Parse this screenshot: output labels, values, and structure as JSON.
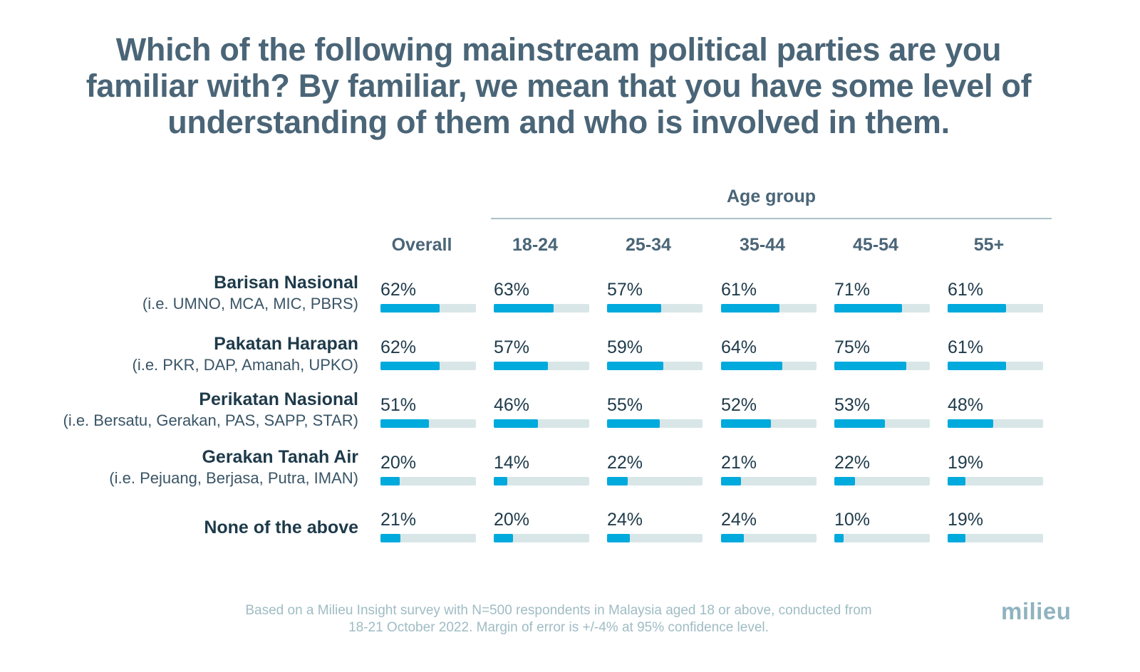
{
  "title": "Which of the following mainstream political parties are you familiar with? By familiar, we mean that you have some level of understanding of them and who is involved in them.",
  "group_label": "Age group",
  "footnote_line1": "Based on a Milieu Insight survey with N=500 respondents in Malaysia aged 18 or above, conducted from",
  "footnote_line2": "18-21 October 2022. Margin of error is +/-4% at 95% confidence level.",
  "logo": "milieu",
  "colors": {
    "bar_fill": "#00aadc",
    "bar_track": "#d9e6e8",
    "title": "#4a6577"
  },
  "chart_data": {
    "type": "table",
    "title": "Which of the following mainstream political parties are you familiar with? By familiar, we mean that you have some level of understanding of them and who is involved in them.",
    "column_group": "Age group",
    "columns": [
      "Overall",
      "18-24",
      "25-34",
      "35-44",
      "45-54",
      "55+"
    ],
    "rows": [
      {
        "name": "Barisan Nasional",
        "sub": "(i.e. UMNO, MCA, MIC, PBRS)",
        "values": [
          62,
          63,
          57,
          61,
          71,
          61
        ]
      },
      {
        "name": "Pakatan Harapan",
        "sub": "(i.e. PKR, DAP, Amanah, UPKO)",
        "values": [
          62,
          57,
          59,
          64,
          75,
          61
        ]
      },
      {
        "name": "Perikatan Nasional",
        "sub": "(i.e. Bersatu, Gerakan, PAS, SAPP, STAR)",
        "values": [
          51,
          46,
          55,
          52,
          53,
          48
        ]
      },
      {
        "name": "Gerakan Tanah Air",
        "sub": "(i.e. Pejuang, Berjasa, Putra, IMAN)",
        "values": [
          20,
          14,
          22,
          21,
          22,
          19
        ]
      },
      {
        "name": "None of the above",
        "sub": "",
        "values": [
          21,
          20,
          24,
          24,
          10,
          19
        ]
      }
    ],
    "unit": "%",
    "value_range": [
      0,
      100
    ]
  }
}
